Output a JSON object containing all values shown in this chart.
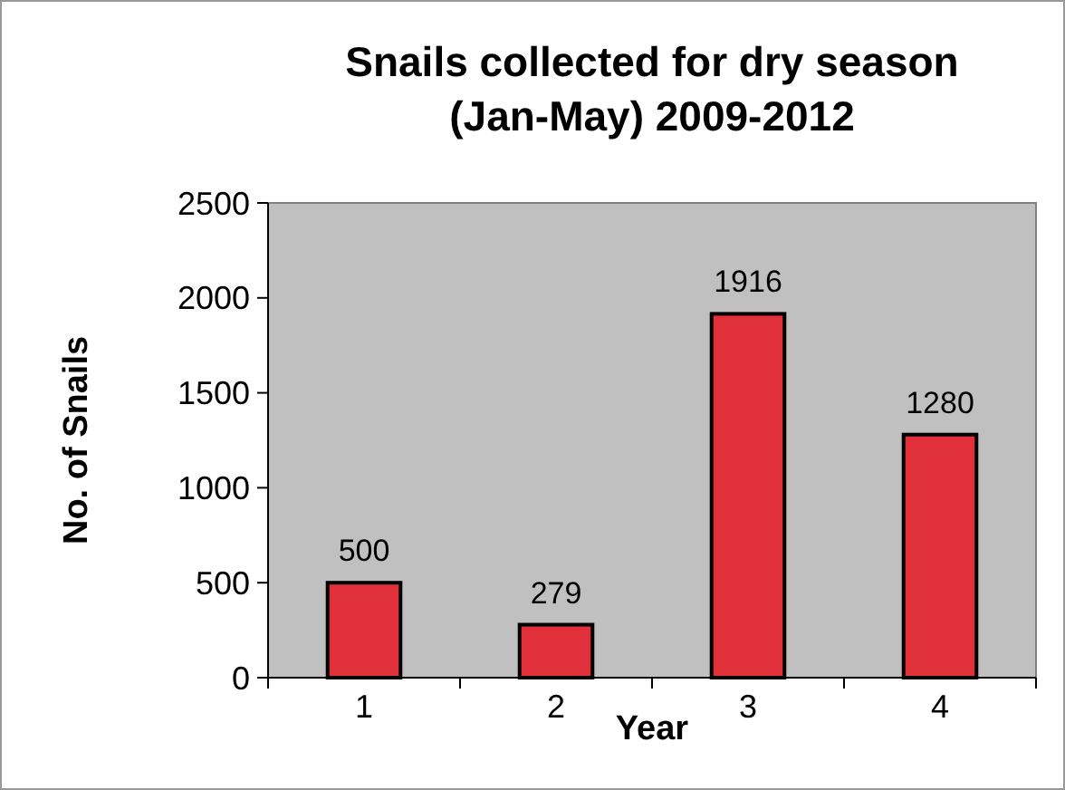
{
  "chart_data": {
    "type": "bar",
    "title": "Snails collected for dry season\n(Jan-May)  2009-2012",
    "xlabel": "Year",
    "ylabel": "No. of Snails",
    "categories": [
      "1",
      "2",
      "3",
      "4"
    ],
    "series": [
      {
        "color": "#e0303a",
        "values": [
          500,
          279,
          1916,
          1280
        ]
      }
    ],
    "ylim": [
      0,
      2500
    ],
    "yticks": [
      0,
      500,
      1000,
      1500,
      2000,
      2500
    ],
    "data_labels": true
  }
}
